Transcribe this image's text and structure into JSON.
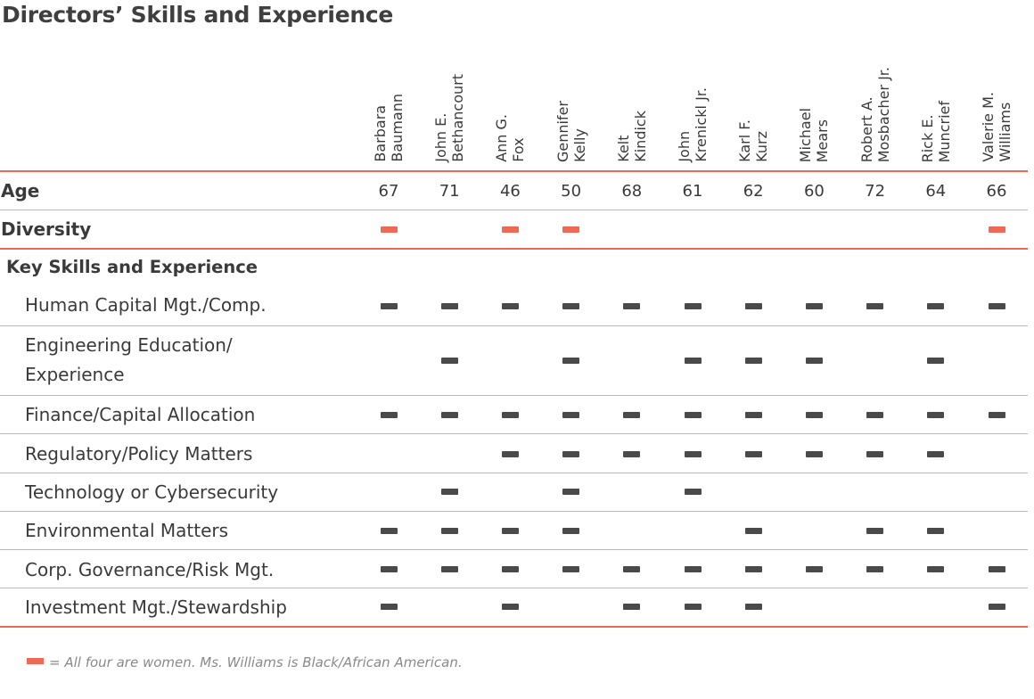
{
  "title": "Directors’ Skills and Experience",
  "directors": [
    {
      "line1": "Barbara",
      "line2": "Baumann"
    },
    {
      "line1": "John E.",
      "line2": "Bethancourt"
    },
    {
      "line1": "Ann G.",
      "line2": "Fox"
    },
    {
      "line1": "Gennifer",
      "line2": "Kelly"
    },
    {
      "line1": "Kelt",
      "line2": "Kindick"
    },
    {
      "line1": "John",
      "line2": "Krenickl Jr."
    },
    {
      "line1": "Karl F.",
      "line2": "Kurz"
    },
    {
      "line1": "Michael",
      "line2": "Mears"
    },
    {
      "line1": "Robert A.",
      "line2": "Mosbacher Jr."
    },
    {
      "line1": "Rick E.",
      "line2": "Muncrief"
    },
    {
      "line1": "Valerie M.",
      "line2": "Williams"
    }
  ],
  "age": {
    "label": "Age",
    "values": [
      "67",
      "71",
      "46",
      "50",
      "68",
      "61",
      "62",
      "60",
      "72",
      "64",
      "66"
    ]
  },
  "diversity": {
    "label": "Diversity",
    "marks": [
      true,
      false,
      true,
      true,
      false,
      false,
      false,
      false,
      false,
      false,
      true
    ]
  },
  "section_label": "Key Skills and Experience",
  "skills": [
    {
      "label": "Human Capital Mgt./Comp.",
      "marks": [
        true,
        true,
        true,
        true,
        true,
        true,
        true,
        true,
        true,
        true,
        true
      ]
    },
    {
      "label": "Engineering Education/",
      "label2": "Experience",
      "marks": [
        false,
        true,
        false,
        true,
        false,
        true,
        true,
        true,
        false,
        true,
        false
      ]
    },
    {
      "label": "Finance/Capital Allocation",
      "marks": [
        true,
        true,
        true,
        true,
        true,
        true,
        true,
        true,
        true,
        true,
        true
      ]
    },
    {
      "label": "Regulatory/Policy Matters",
      "marks": [
        false,
        false,
        true,
        true,
        true,
        true,
        true,
        true,
        true,
        true,
        false
      ]
    },
    {
      "label": "Technology or Cybersecurity",
      "marks": [
        false,
        true,
        false,
        true,
        false,
        true,
        false,
        false,
        false,
        false,
        false
      ]
    },
    {
      "label": "Environmental Matters",
      "marks": [
        true,
        true,
        true,
        true,
        false,
        false,
        true,
        false,
        true,
        true,
        false
      ]
    },
    {
      "label": "Corp. Governance/Risk Mgt.",
      "marks": [
        true,
        true,
        true,
        true,
        true,
        true,
        true,
        true,
        true,
        true,
        true
      ]
    },
    {
      "label": "Investment Mgt./Stewardship",
      "marks": [
        true,
        false,
        true,
        false,
        true,
        true,
        true,
        false,
        false,
        false,
        true
      ]
    }
  ],
  "footnote": "= All four are women. Ms. Williams is Black/African American.",
  "colors": {
    "accent": "#ef6a55",
    "mark": "#4a4a4a",
    "text": "#3a3a3a"
  }
}
